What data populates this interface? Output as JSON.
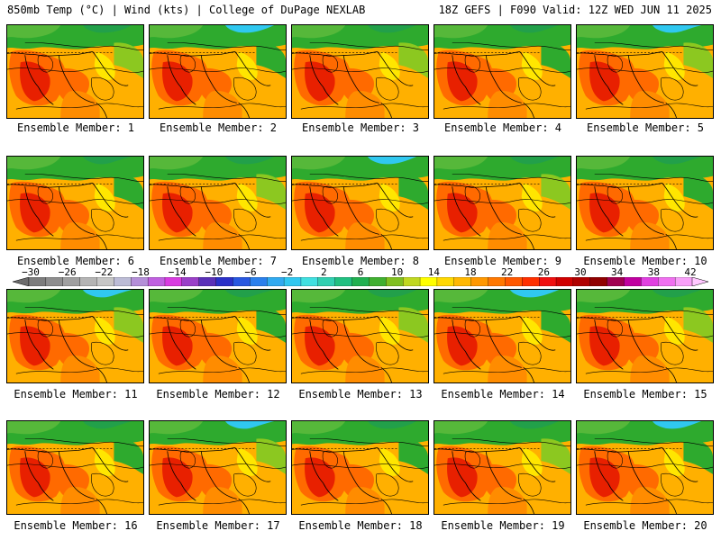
{
  "header": {
    "left": "850mb Temp (°C) | Wind (kts) | College of DuPage NEXLAB",
    "right": "18Z GEFS | F090 Valid: 12Z WED JUN 11 2025"
  },
  "panels": [
    {
      "label": "Ensemble Member: 1"
    },
    {
      "label": "Ensemble Member: 2"
    },
    {
      "label": "Ensemble Member: 3"
    },
    {
      "label": "Ensemble Member: 4"
    },
    {
      "label": "Ensemble Member: 5"
    },
    {
      "label": "Ensemble Member: 6"
    },
    {
      "label": "Ensemble Member: 7"
    },
    {
      "label": "Ensemble Member: 8"
    },
    {
      "label": "Ensemble Member: 9"
    },
    {
      "label": "Ensemble Member: 10"
    },
    {
      "label": "Ensemble Member: 11"
    },
    {
      "label": "Ensemble Member: 12"
    },
    {
      "label": "Ensemble Member: 13"
    },
    {
      "label": "Ensemble Member: 14"
    },
    {
      "label": "Ensemble Member: 15"
    },
    {
      "label": "Ensemble Member: 16"
    },
    {
      "label": "Ensemble Member: 17"
    },
    {
      "label": "Ensemble Member: 18"
    },
    {
      "label": "Ensemble Member: 19"
    },
    {
      "label": "Ensemble Member: 20"
    }
  ],
  "colorbar": {
    "labels": [
      "−30",
      "−26",
      "−22",
      "−18",
      "−14",
      "−10",
      "−6",
      "−2",
      "2",
      "6",
      "10",
      "14",
      "18",
      "22",
      "26",
      "30",
      "34",
      "38",
      "42"
    ],
    "colors": [
      "#6c6c6c",
      "#7d7d7d",
      "#8e8e8e",
      "#a0a0a0",
      "#b4b4b4",
      "#c6c6c6",
      "#bcbcd6",
      "#b48fd8",
      "#c060e0",
      "#d83ce0",
      "#9a40c8",
      "#5a30b8",
      "#2a30c8",
      "#2858e0",
      "#2a80ec",
      "#30aaf0",
      "#30c8f0",
      "#40e0e0",
      "#30d0b0",
      "#20c080",
      "#20b050",
      "#40b030",
      "#80c020",
      "#c0d820",
      "#ffff00",
      "#ffd800",
      "#ffb800",
      "#ff9800",
      "#ff7800",
      "#ff5800",
      "#ff3000",
      "#f01010",
      "#d00000",
      "#b00000",
      "#900000",
      "#a00050",
      "#c000a0",
      "#e040e0",
      "#f070f0",
      "#f8a0f8",
      "#ffc8ff"
    ]
  },
  "map_colors": {
    "warm": "#ff6a00",
    "hot": "#e82000",
    "mild": "#ffb000",
    "cool": "#ffe600",
    "green": "#2eaa2e",
    "cold": "#30c8f0"
  }
}
